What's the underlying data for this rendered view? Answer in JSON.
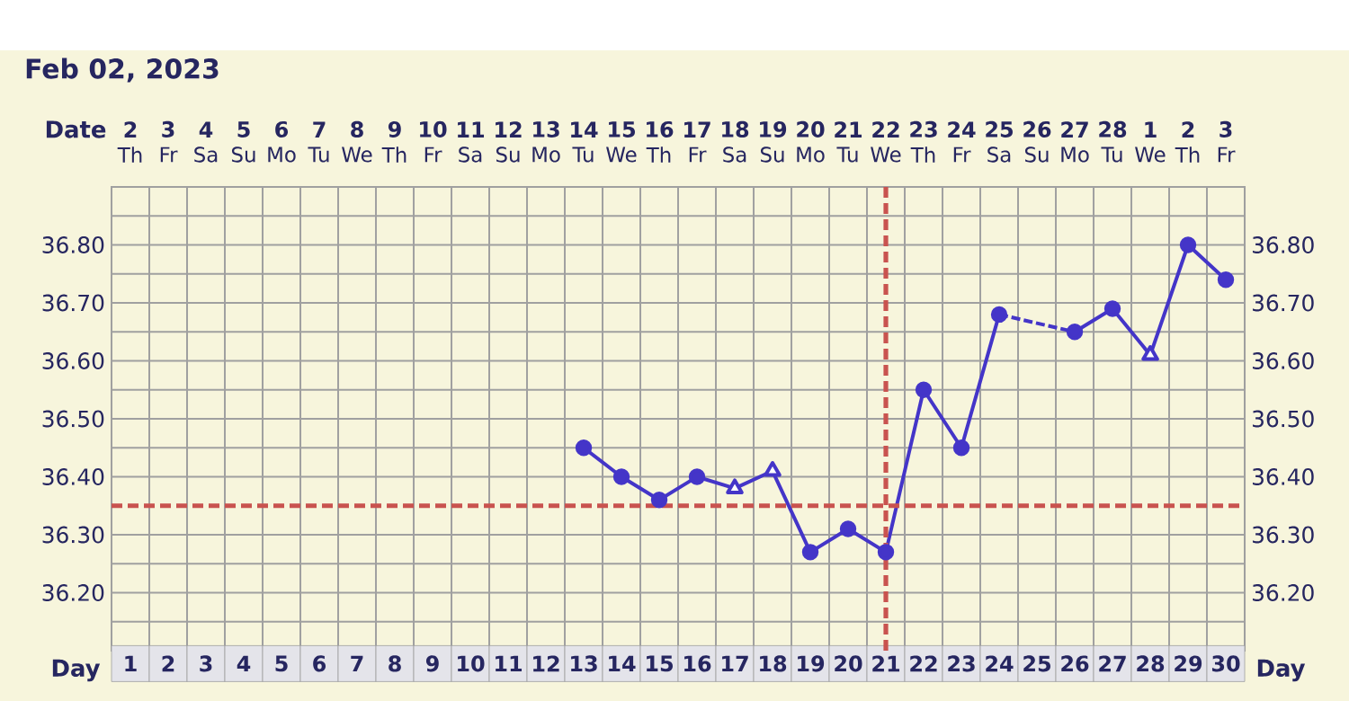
{
  "chart_data": {
    "type": "line",
    "title": "Feb 02, 2023",
    "xlabel": "Day",
    "x2label": "Date",
    "xlim": [
      0.5,
      30.5
    ],
    "xticks": [
      1,
      2,
      3,
      4,
      5,
      6,
      7,
      8,
      9,
      10,
      11,
      12,
      13,
      14,
      15,
      16,
      17,
      18,
      19,
      20,
      21,
      22,
      23,
      24,
      25,
      26,
      27,
      28,
      29,
      30
    ],
    "x2lim": [
      "2023-02-01T12:00",
      "2023-03-03T12:00"
    ],
    "x2ticks": [
      {
        "value": "2023-02-02",
        "label": "2"
      },
      {
        "value": "2023-02-03",
        "label": "3"
      },
      {
        "value": "2023-02-04",
        "label": "4"
      },
      {
        "value": "2023-02-05",
        "label": "5"
      },
      {
        "value": "2023-02-06",
        "label": "6"
      },
      {
        "value": "2023-02-07",
        "label": "7"
      },
      {
        "value": "2023-02-08",
        "label": "8"
      },
      {
        "value": "2023-02-09",
        "label": "9"
      },
      {
        "value": "2023-02-10",
        "label": "10"
      },
      {
        "value": "2023-02-11",
        "label": "11"
      },
      {
        "value": "2023-02-12",
        "label": "12"
      },
      {
        "value": "2023-02-13",
        "label": "13"
      },
      {
        "value": "2023-02-14",
        "label": "14"
      },
      {
        "value": "2023-02-15",
        "label": "15"
      },
      {
        "value": "2023-02-16",
        "label": "16"
      },
      {
        "value": "2023-02-17",
        "label": "17"
      },
      {
        "value": "2023-02-18",
        "label": "18"
      },
      {
        "value": "2023-02-19",
        "label": "19"
      },
      {
        "value": "2023-02-20",
        "label": "20"
      },
      {
        "value": "2023-02-21",
        "label": "21"
      },
      {
        "value": "2023-02-22",
        "label": "22"
      },
      {
        "value": "2023-02-23",
        "label": "23"
      },
      {
        "value": "2023-02-24",
        "label": "24"
      },
      {
        "value": "2023-02-25",
        "label": "25"
      },
      {
        "value": "2023-02-26",
        "label": "26"
      },
      {
        "value": "2023-02-27",
        "label": "27"
      },
      {
        "value": "2023-02-28",
        "label": "28"
      },
      {
        "value": "2023-03-01",
        "label": "1"
      },
      {
        "value": "2023-03-02",
        "label": "2"
      },
      {
        "value": "2023-03-03",
        "label": "3"
      }
    ],
    "annotations": [
      "Th",
      "Fr",
      "Sa",
      "Su",
      "Mo",
      "Tu",
      "We",
      "Th",
      "Fr",
      "Sa",
      "Su",
      "Mo",
      "Tu",
      "We",
      "Th",
      "Fr",
      "Sa",
      "Su",
      "Mo",
      "Tu",
      "We",
      "Th",
      "Fr",
      "Sa",
      "Su",
      "Mo",
      "Tu",
      "We",
      "Th",
      "Fr"
    ],
    "ylim": [
      36.1,
      36.9
    ],
    "yticks": [
      {
        "value": 36.1,
        "label": null
      },
      {
        "value": 36.15,
        "label": null
      },
      {
        "value": 36.2,
        "label": "36.20"
      },
      {
        "value": 36.25,
        "label": null
      },
      {
        "value": 36.3,
        "label": "36.30"
      },
      {
        "value": 36.4,
        "label": "36.40"
      },
      {
        "value": 36.45,
        "label": null
      },
      {
        "value": 36.5,
        "label": "36.50"
      },
      {
        "value": 36.55,
        "label": null
      },
      {
        "value": 36.6,
        "label": "36.60"
      },
      {
        "value": 36.65,
        "label": null
      },
      {
        "value": 36.7,
        "label": "36.70"
      },
      {
        "value": 36.75,
        "label": null
      },
      {
        "value": 36.8,
        "label": "36.80"
      },
      {
        "value": 36.85,
        "label": null
      },
      {
        "value": 36.9,
        "label": null
      }
    ],
    "y2lim": [
      36.1,
      36.9
    ],
    "y2ticks": [
      {
        "value": 36.2,
        "label": "36.20"
      },
      {
        "value": 36.3,
        "label": "36.30"
      },
      {
        "value": 36.4,
        "label": "36.40"
      },
      {
        "value": 36.5,
        "label": "36.50"
      },
      {
        "value": 36.6,
        "label": "36.60"
      },
      {
        "value": 36.7,
        "label": "36.70"
      },
      {
        "value": 36.8,
        "label": "36.80"
      }
    ],
    "grid": true,
    "series": [
      {
        "color": "#4435c8",
        "marker": "none",
        "line_style": "solid",
        "x": [
          13,
          14,
          15,
          16,
          17,
          18,
          19,
          20,
          21,
          22,
          23,
          24
        ],
        "values": [
          36.45,
          36.4,
          36.36,
          36.4,
          36.38,
          36.41,
          36.27,
          36.31,
          36.27,
          36.55,
          36.45,
          36.68
        ]
      },
      {
        "color": "#4435c8",
        "marker": "none",
        "line_style": "solid",
        "x": [
          26,
          27,
          28,
          29,
          30
        ],
        "values": [
          36.65,
          36.69,
          36.61,
          36.8,
          36.74
        ]
      },
      {
        "color": "#4435c8",
        "marker": "none",
        "line_style": "dashed",
        "x": [
          24,
          26
        ],
        "values": [
          36.68,
          36.65
        ]
      },
      {
        "type": "scatter",
        "color": "#4435c8",
        "marker": "circle",
        "x": [
          13,
          14,
          15,
          16,
          19,
          20,
          21,
          22,
          23,
          24,
          26,
          27,
          29,
          30
        ],
        "values": [
          36.45,
          36.4,
          36.36,
          36.4,
          36.27,
          36.31,
          36.27,
          36.55,
          36.45,
          36.68,
          36.65,
          36.69,
          36.8,
          36.74
        ]
      },
      {
        "type": "scatter",
        "color": "#4435c8",
        "marker": "triangle",
        "x": [
          17,
          18,
          28
        ],
        "values": [
          36.38,
          36.41,
          36.61
        ]
      }
    ],
    "ref_lines": [
      {
        "axis": "y",
        "value": 36.35,
        "color": "#c9534f",
        "line_style": "dashed"
      },
      {
        "axis": "x",
        "value": 21,
        "color": "#c9534f",
        "line_style": "dashed"
      }
    ]
  }
}
